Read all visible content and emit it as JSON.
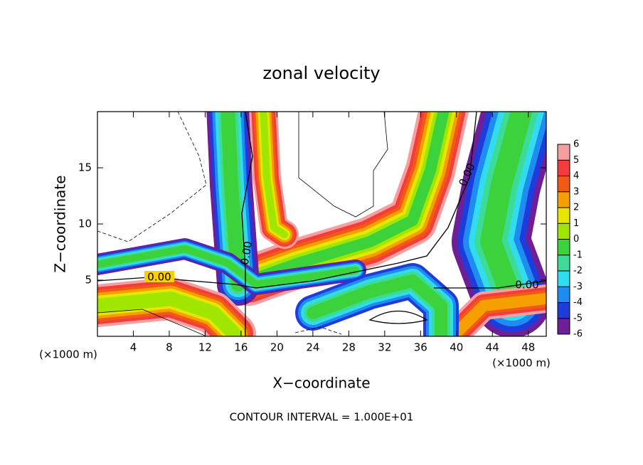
{
  "chart_data": {
    "type": "contour",
    "title": "zonal velocity",
    "xlabel": "X−coordinate",
    "ylabel": "Z−coordinate",
    "x_unit": "(×1000 m)",
    "y_unit": "(×1000 m)",
    "footer": "CONTOUR INTERVAL = 1.000E+01",
    "contour_labels": [
      "0.00",
      "0.00",
      "0.00",
      "0.00"
    ],
    "xlim": [
      0,
      50
    ],
    "xticks": [
      4,
      8,
      12,
      16,
      20,
      24,
      28,
      32,
      36,
      40,
      44,
      48
    ],
    "ylim": [
      0,
      20
    ],
    "yticks": [
      5,
      10,
      15
    ],
    "colorbar": {
      "lim": [
        -6,
        6
      ],
      "ticks": [
        6,
        5,
        4,
        3,
        2,
        1,
        0,
        -1,
        -2,
        -3,
        -4,
        -5,
        -6
      ],
      "colors": [
        "#f5a0a0",
        "#f53c3c",
        "#f05a14",
        "#f5a000",
        "#e6e600",
        "#a0e600",
        "#3cd23c",
        "#3cdc96",
        "#32dcf0",
        "#1e8cf0",
        "#1e3cdc",
        "#6e1e96"
      ]
    }
  }
}
